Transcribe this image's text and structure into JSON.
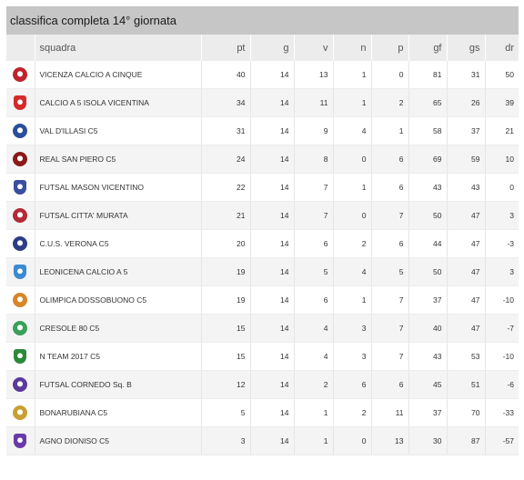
{
  "title": "classifica completa 14° giornata",
  "columns": {
    "team": "squadra",
    "pt": "pt",
    "g": "g",
    "v": "v",
    "n": "n",
    "p": "p",
    "gf": "gf",
    "gs": "gs",
    "dr": "dr"
  },
  "rows": [
    {
      "team": "VICENZA CALCIO A CINQUE",
      "pt": "40",
      "g": "14",
      "v": "13",
      "n": "1",
      "p": "0",
      "gf": "81",
      "gs": "31",
      "dr": "50",
      "logo_color": "#c0232c"
    },
    {
      "team": "CALCIO A 5 ISOLA VICENTINA",
      "pt": "34",
      "g": "14",
      "v": "11",
      "n": "1",
      "p": "2",
      "gf": "65",
      "gs": "26",
      "dr": "39",
      "logo_color": "#d42a2a"
    },
    {
      "team": "VAL D'ILLASI C5",
      "pt": "31",
      "g": "14",
      "v": "9",
      "n": "4",
      "p": "1",
      "gf": "58",
      "gs": "37",
      "dr": "21",
      "logo_color": "#2a4f9a"
    },
    {
      "team": "REAL SAN PIERO C5",
      "pt": "24",
      "g": "14",
      "v": "8",
      "n": "0",
      "p": "6",
      "gf": "69",
      "gs": "59",
      "dr": "10",
      "logo_color": "#8a1a1a"
    },
    {
      "team": "FUTSAL MASON VICENTINO",
      "pt": "22",
      "g": "14",
      "v": "7",
      "n": "1",
      "p": "6",
      "gf": "43",
      "gs": "43",
      "dr": "0",
      "logo_color": "#3a4fa0"
    },
    {
      "team": "FUTSAL CITTA' MURATA",
      "pt": "21",
      "g": "14",
      "v": "7",
      "n": "0",
      "p": "7",
      "gf": "50",
      "gs": "47",
      "dr": "3",
      "logo_color": "#b32a38"
    },
    {
      "team": "C.U.S. VERONA C5",
      "pt": "20",
      "g": "14",
      "v": "6",
      "n": "2",
      "p": "6",
      "gf": "44",
      "gs": "47",
      "dr": "-3",
      "logo_color": "#2c3e8a"
    },
    {
      "team": "LEONICENA CALCIO A 5",
      "pt": "19",
      "g": "14",
      "v": "5",
      "n": "4",
      "p": "5",
      "gf": "50",
      "gs": "47",
      "dr": "3",
      "logo_color": "#3c8ad0"
    },
    {
      "team": "OLIMPICA DOSSOBUONO C5",
      "pt": "19",
      "g": "14",
      "v": "6",
      "n": "1",
      "p": "7",
      "gf": "37",
      "gs": "47",
      "dr": "-10",
      "logo_color": "#d8862a"
    },
    {
      "team": "CRESOLE 80 C5",
      "pt": "15",
      "g": "14",
      "v": "4",
      "n": "3",
      "p": "7",
      "gf": "40",
      "gs": "47",
      "dr": "-7",
      "logo_color": "#3aa05a"
    },
    {
      "team": "N TEAM 2017 C5",
      "pt": "15",
      "g": "14",
      "v": "4",
      "n": "3",
      "p": "7",
      "gf": "43",
      "gs": "53",
      "dr": "-10",
      "logo_color": "#2d8a3a"
    },
    {
      "team": "FUTSAL CORNEDO Sq. B",
      "pt": "12",
      "g": "14",
      "v": "2",
      "n": "6",
      "p": "6",
      "gf": "45",
      "gs": "51",
      "dr": "-6",
      "logo_color": "#5a3a9a"
    },
    {
      "team": "BONARUBIANA C5",
      "pt": "5",
      "g": "14",
      "v": "1",
      "n": "2",
      "p": "11",
      "gf": "37",
      "gs": "70",
      "dr": "-33",
      "logo_color": "#c8a030"
    },
    {
      "team": "AGNO DIONISO C5",
      "pt": "3",
      "g": "14",
      "v": "1",
      "n": "0",
      "p": "13",
      "gf": "30",
      "gs": "87",
      "dr": "-57",
      "logo_color": "#6a3aa8"
    }
  ]
}
